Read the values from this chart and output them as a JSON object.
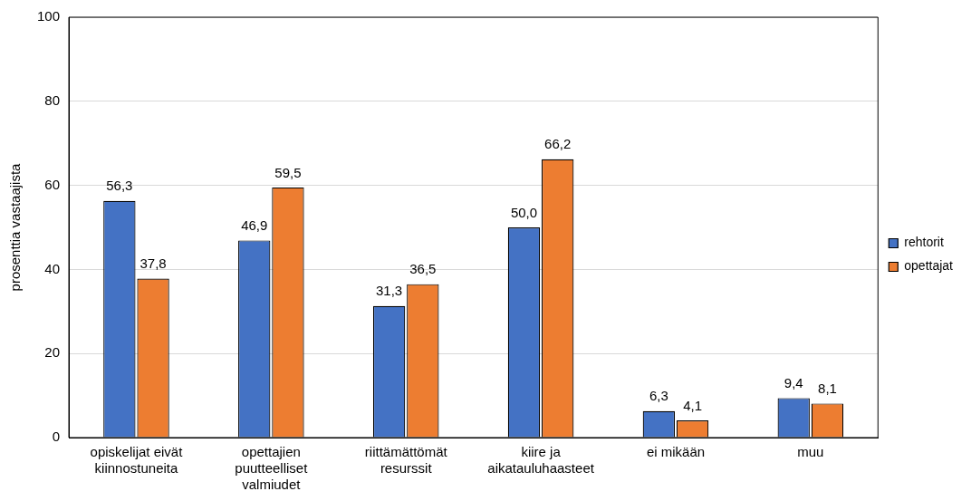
{
  "chart_data": {
    "type": "bar",
    "ylabel": "prosenttia vastaajista",
    "categories": [
      "opiskelijat eivät kiinnostuneita",
      "opettajien puutteelliset valmiudet",
      "riittämättömät resurssit",
      "kiire ja aikatauluhaasteet",
      "ei mikään",
      "muu"
    ],
    "series": [
      {
        "name": "rehtorit",
        "color": "#4472c4",
        "values": [
          56.3,
          46.9,
          31.3,
          50.0,
          6.3,
          9.4
        ],
        "value_labels": [
          "56,3",
          "46,9",
          "31,3",
          "50,0",
          "6,3",
          "9,4"
        ]
      },
      {
        "name": "opettajat",
        "color": "#ed7d31",
        "values": [
          37.8,
          59.5,
          36.5,
          66.2,
          4.1,
          8.1
        ],
        "value_labels": [
          "37,8",
          "59,5",
          "36,5",
          "66,2",
          "4,1",
          "8,1"
        ]
      }
    ],
    "ylim": [
      0,
      100
    ],
    "yticks": [
      0,
      20,
      40,
      60,
      80,
      100
    ],
    "grid": "y",
    "legend": "right"
  }
}
